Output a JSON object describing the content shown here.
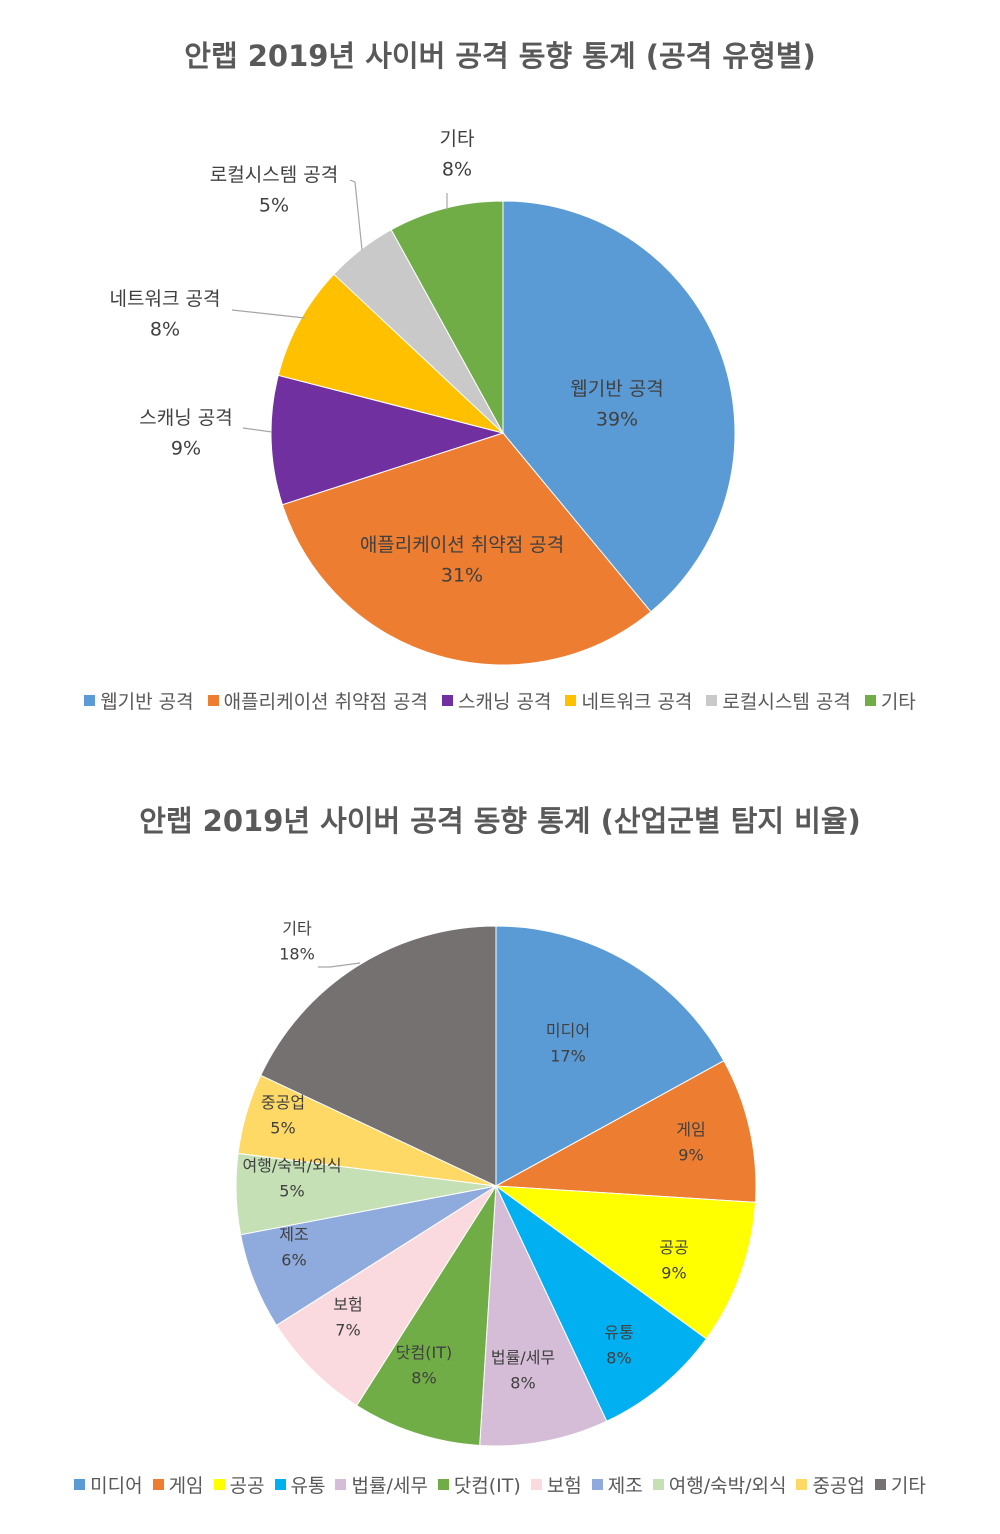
{
  "chart_data": [
    {
      "type": "pie",
      "title": "안랩 2019년 사이버 공격 동향 통계 (공격 유형별)",
      "start": "top",
      "direction": "clockwise",
      "legend_position": "bottom",
      "slices": [
        {
          "label": "웹기반 공격",
          "value": 39,
          "value_label": "39%",
          "color": "#5B9BD5"
        },
        {
          "label": "애플리케이션 취약점 공격",
          "value": 31,
          "value_label": "31%",
          "color": "#ED7D31"
        },
        {
          "label": "스캐닝 공격",
          "value": 9,
          "value_label": "9%",
          "color": "#7030A0"
        },
        {
          "label": "네트워크 공격",
          "value": 8,
          "value_label": "8%",
          "color": "#FFC000"
        },
        {
          "label": "로컬시스템 공격",
          "value": 5,
          "value_label": "5%",
          "color": "#C9C9C9"
        },
        {
          "label": "기타",
          "value": 8,
          "value_label": "8%",
          "color": "#70AD47"
        }
      ]
    },
    {
      "type": "pie",
      "title": "안랩 2019년 사이버 공격 동향 통계 (산업군별 탐지 비율)",
      "start": "top",
      "direction": "clockwise",
      "legend_position": "bottom",
      "slices": [
        {
          "label": "미디어",
          "value": 17,
          "value_label": "17%",
          "color": "#5B9BD5"
        },
        {
          "label": "게임",
          "value": 9,
          "value_label": "9%",
          "color": "#ED7D31"
        },
        {
          "label": "공공",
          "value": 9,
          "value_label": "9%",
          "color": "#FFFF00"
        },
        {
          "label": "유통",
          "value": 8,
          "value_label": "8%",
          "color": "#00B0F0"
        },
        {
          "label": "법률/세무",
          "value": 8,
          "value_label": "8%",
          "color": "#D5BDD8"
        },
        {
          "label": "닷컴(IT)",
          "value": 8,
          "value_label": "8%",
          "color": "#70AD47"
        },
        {
          "label": "보험",
          "value": 7,
          "value_label": "7%",
          "color": "#FADADF"
        },
        {
          "label": "제조",
          "value": 6,
          "value_label": "6%",
          "color": "#8FAADC"
        },
        {
          "label": "여행/숙박/외식",
          "value": 5,
          "value_label": "5%",
          "color": "#C5E0B4"
        },
        {
          "label": "중공업",
          "value": 5,
          "value_label": "5%",
          "color": "#FFD966"
        },
        {
          "label": "기타",
          "value": 18,
          "value_label": "18%",
          "color": "#767171"
        }
      ]
    }
  ]
}
